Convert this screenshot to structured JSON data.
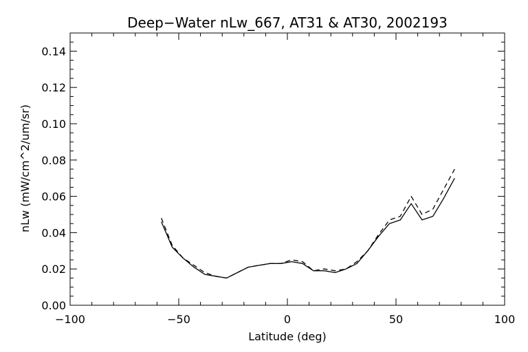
{
  "chart_data": {
    "type": "line",
    "title": "Deep−Water nLw_667, AT31 & AT30, 2002193",
    "xlabel": "Latitude (deg)",
    "ylabel": "nLw (mW/cm^2/um/sr)",
    "xlim": [
      -100,
      100
    ],
    "ylim": [
      0,
      0.15
    ],
    "x_ticks": [
      -100,
      -50,
      0,
      50,
      100
    ],
    "x_tick_labels": [
      "−100",
      "−50",
      "0",
      "50",
      "100"
    ],
    "y_ticks": [
      0.0,
      0.02,
      0.04,
      0.06,
      0.08,
      0.1,
      0.12,
      0.14
    ],
    "y_tick_labels": [
      "0.00",
      "0.02",
      "0.04",
      "0.06",
      "0.08",
      "0.10",
      "0.12",
      "0.14"
    ],
    "x_minor_step": 10,
    "y_minor_step": 0.005,
    "grid": false,
    "legend": "none",
    "series": [
      {
        "style": "solid",
        "color": "#000000",
        "x": [
          -58,
          -53,
          -48,
          -43,
          -38,
          -33,
          -28,
          -23,
          -18,
          -13,
          -8,
          -3,
          2,
          7,
          12,
          17,
          22,
          27,
          32,
          37,
          42,
          47,
          52,
          57,
          62,
          67,
          72,
          77
        ],
        "y": [
          0.046,
          0.032,
          0.026,
          0.021,
          0.017,
          0.016,
          0.015,
          0.018,
          0.021,
          0.022,
          0.023,
          0.023,
          0.024,
          0.023,
          0.019,
          0.019,
          0.018,
          0.02,
          0.023,
          0.03,
          0.038,
          0.045,
          0.047,
          0.056,
          0.047,
          0.049,
          0.059,
          0.07
        ]
      },
      {
        "style": "dashed",
        "color": "#000000",
        "x": [
          -58,
          -53,
          -48,
          -43,
          -38,
          -33,
          -28,
          -23,
          -18,
          -13,
          -8,
          -3,
          2,
          7,
          12,
          17,
          22,
          27,
          32,
          37,
          42,
          47,
          52,
          57,
          62,
          67,
          72,
          77
        ],
        "y": [
          0.048,
          0.033,
          0.026,
          0.022,
          0.018,
          0.016,
          0.015,
          0.018,
          0.021,
          0.022,
          0.023,
          0.023,
          0.025,
          0.024,
          0.019,
          0.02,
          0.019,
          0.02,
          0.024,
          0.03,
          0.039,
          0.047,
          0.049,
          0.06,
          0.05,
          0.053,
          0.064,
          0.075
        ]
      }
    ]
  }
}
